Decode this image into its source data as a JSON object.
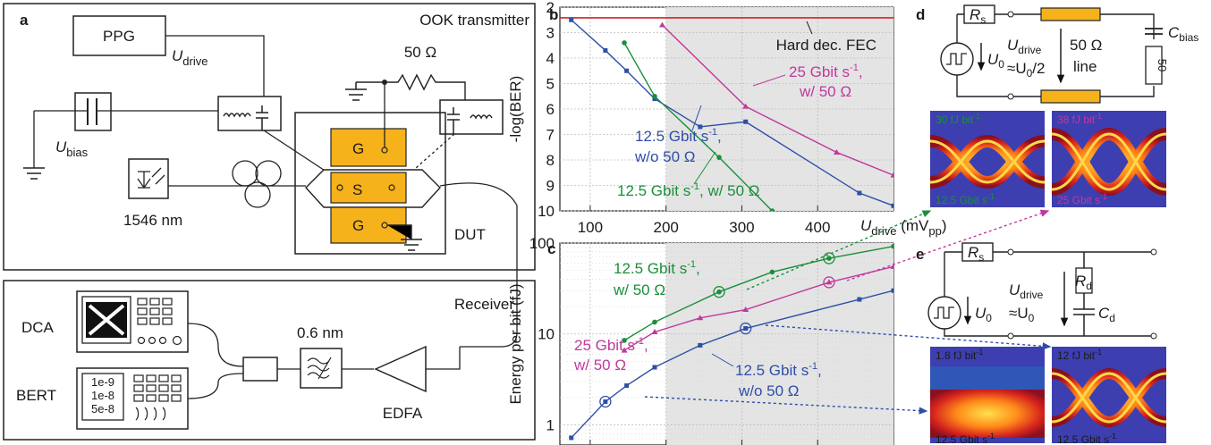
{
  "panels": {
    "a": "a",
    "b": "b",
    "c": "c",
    "d": "d",
    "e": "e"
  },
  "panel_a": {
    "transmitter_title": "OOK transmitter",
    "ppg": "PPG",
    "u_drive_main": "U",
    "u_drive_sub": "drive",
    "u_bias_main": "U",
    "u_bias_sub": "bias",
    "resistor": "50 Ω",
    "laser_wavelength": "1546 nm",
    "dut": "DUT",
    "pad_g_top": "G",
    "pad_s": "S",
    "pad_g_bottom": "G",
    "receiver_title": "Receiver",
    "dca": "DCA",
    "bert": "BERT",
    "bert_values": [
      "1e-9",
      "1e-8",
      "5e-8"
    ],
    "filter_bw": "0.6 nm",
    "edfa": "EDFA"
  },
  "panel_d": {
    "rs": "R",
    "rs_sub": "s",
    "u0": "U",
    "u0_sub": "0",
    "udrive": "U",
    "udrive_sub": "drive",
    "approx": "≈U",
    "approx_sub": "0",
    "approx_tail": "/2",
    "line_label_1": "50 Ω",
    "line_label_2": "line",
    "cbias": "C",
    "cbias_sub": "bias",
    "term": "50",
    "eye_left_energy": "30 fJ bit",
    "eye_left_rate": "12.5 Gbit s",
    "eye_right_energy": "38 fJ bit",
    "eye_right_rate": "25 Gbit s",
    "sup": "-1"
  },
  "panel_e": {
    "rs": "R",
    "rs_sub": "s",
    "u0": "U",
    "u0_sub": "0",
    "udrive": "U",
    "udrive_sub": "drive",
    "approx": "≈U",
    "approx_sub": "0",
    "rd": "R",
    "rd_sub": "d",
    "cd": "C",
    "cd_sub": "d",
    "eye_left_energy": "1.8 fJ bit",
    "eye_left_rate": "12.5 Gbit s",
    "eye_right_energy": "12 fJ bit",
    "eye_right_rate": "12.5 Gbit s",
    "sup": "-1"
  },
  "chart_data": [
    {
      "type": "line",
      "panel": "b",
      "ylabel": "-log(BER)",
      "xlabel_main": "U",
      "xlabel_sub": "drive",
      "xlabel_unit": " (mV",
      "xlabel_unit_sub": "pp",
      "xlabel_close": ")",
      "xlim": [
        60,
        500
      ],
      "ylim": [
        2,
        10
      ],
      "y_inverted": true,
      "xticks": [
        100,
        200,
        300,
        400
      ],
      "yticks": [
        2,
        3,
        4,
        5,
        6,
        7,
        8,
        9,
        10
      ],
      "shaded_from_x": 200,
      "fec_threshold": 2.42,
      "fec_label": "Hard dec. FEC",
      "series": [
        {
          "name": "12.5 Gbit s",
          "name_sup": "-1",
          "name_tail": ",",
          "name_line2": "w/o 50 Ω",
          "color": "#2e4fa8",
          "marker": "square",
          "x": [
            75,
            120,
            148,
            185,
            245,
            305,
            455,
            500
          ],
          "y": [
            2.5,
            3.7,
            4.5,
            5.6,
            6.7,
            6.5,
            9.3,
            9.8
          ]
        },
        {
          "name": "12.5 Gbit s",
          "name_sup": "-1",
          "name_tail": ", w/ 50 Ω",
          "color": "#1a8f3a",
          "marker": "circle",
          "x": [
            145,
            185,
            270,
            340
          ],
          "y": [
            3.4,
            5.5,
            7.9,
            10.0
          ]
        },
        {
          "name": "25 Gbit s",
          "name_sup": "-1",
          "name_tail": ",",
          "name_line2": "w/ 50 Ω",
          "color": "#c0399e",
          "marker": "triangle",
          "x": [
            195,
            305,
            425,
            500
          ],
          "y": [
            2.7,
            5.9,
            7.7,
            8.6
          ]
        }
      ]
    },
    {
      "type": "line",
      "panel": "c",
      "ylabel": "Energy per bit (fJ)",
      "y_log": true,
      "xlim": [
        60,
        500
      ],
      "ylim": [
        0.6,
        100
      ],
      "yticks": [
        1,
        10,
        100
      ],
      "shaded_from_x": 200,
      "series": [
        {
          "name": "12.5 Gbit s",
          "name_sup": "-1",
          "name_tail": ",",
          "name_line2": "w/ 50 Ω",
          "color": "#1a8f3a",
          "marker": "circle",
          "x": [
            145,
            185,
            270,
            340,
            415,
            500
          ],
          "y": [
            8.5,
            13.5,
            29,
            48,
            68,
            92
          ],
          "highlight_x": [
            270,
            415
          ]
        },
        {
          "name": "25 Gbit s",
          "name_sup": "-1",
          "name_tail": ",",
          "name_line2": "w/ 50 Ω",
          "color": "#c0399e",
          "marker": "triangle",
          "x": [
            145,
            185,
            245,
            305,
            415,
            500
          ],
          "y": [
            6.6,
            10.5,
            15,
            18.5,
            37,
            55
          ],
          "highlight_x": [
            415
          ]
        },
        {
          "name": "12.5 Gbit s",
          "name_sup": "-1",
          "name_tail": ",",
          "name_line2": "w/o 50 Ω",
          "color": "#2e4fa8",
          "marker": "square",
          "x": [
            75,
            120,
            148,
            185,
            245,
            305,
            455,
            500
          ],
          "y": [
            0.72,
            1.8,
            2.7,
            4.3,
            7.5,
            11.5,
            24,
            30
          ],
          "highlight_x": [
            120,
            305
          ]
        }
      ]
    }
  ]
}
